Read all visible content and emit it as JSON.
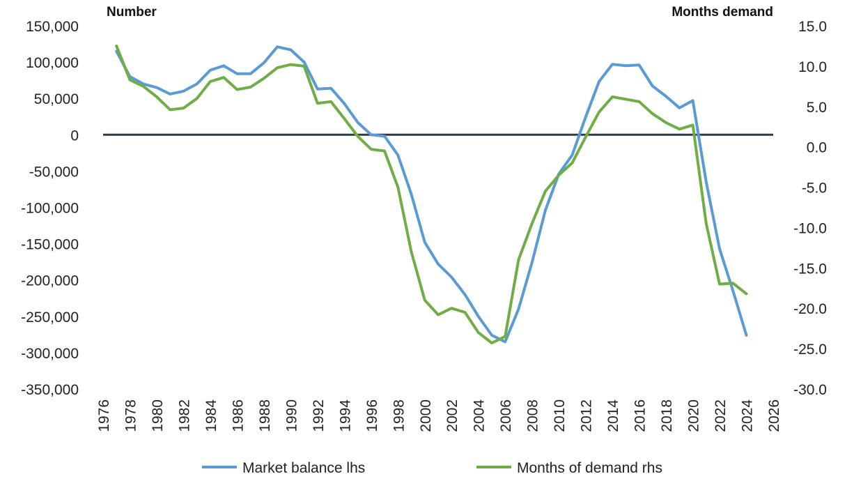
{
  "chart_data": {
    "type": "line",
    "title": "",
    "left_axis_title": "Number",
    "right_axis_title": "Months demand",
    "y_left_range": [
      -350000,
      150000
    ],
    "y_left_ticks": [
      150000,
      100000,
      50000,
      0,
      -50000,
      -100000,
      -150000,
      -200000,
      -250000,
      -300000,
      -350000
    ],
    "y_left_tick_labels": [
      "150,000",
      "100,000",
      "50,000",
      "0",
      "-50,000",
      "-100,000",
      "-150,000",
      "-200,000",
      "-250,000",
      "-300,000",
      "-350,000"
    ],
    "y_right_range": [
      -30,
      15
    ],
    "y_right_ticks": [
      15,
      10,
      5,
      0,
      -5,
      -10,
      -15,
      -20,
      -25,
      -30
    ],
    "y_right_tick_labels": [
      "15.0",
      "10.0",
      "5.0",
      "0.0",
      "-5.0",
      "-10.0",
      "-15.0",
      "-20.0",
      "-25.0",
      "-30.0"
    ],
    "x_range": [
      1976,
      2026
    ],
    "x_ticks": [
      1976,
      1978,
      1980,
      1982,
      1984,
      1986,
      1988,
      1990,
      1992,
      1994,
      1996,
      1998,
      2000,
      2002,
      2004,
      2006,
      2008,
      2010,
      2012,
      2014,
      2016,
      2018,
      2020,
      2022,
      2024,
      2026
    ],
    "x_tick_labels": [
      "1976",
      "1978",
      "1980",
      "1982",
      "1984",
      "1986",
      "1988",
      "1990",
      "1992",
      "1994",
      "1996",
      "1998",
      "2000",
      "2002",
      "2004",
      "2006",
      "2008",
      "2010",
      "2012",
      "2014",
      "2016",
      "2018",
      "2020",
      "2022",
      "2024",
      "2026"
    ],
    "legend_position": "bottom",
    "series": [
      {
        "name": "Market balance lhs",
        "axis": "left",
        "color": "#5B9BD5",
        "x": [
          1977,
          1978,
          1979,
          1980,
          1981,
          1982,
          1983,
          1984,
          1985,
          1986,
          1987,
          1988,
          1989,
          1990,
          1991,
          1992,
          1993,
          1994,
          1995,
          1996,
          1997,
          1998,
          1999,
          2000,
          2001,
          2002,
          2003,
          2004,
          2005,
          2006,
          2007,
          2008,
          2009,
          2010,
          2011,
          2012,
          2013,
          2014,
          2015,
          2016,
          2017,
          2018,
          2019,
          2020,
          2021,
          2022,
          2023,
          2024
        ],
        "values": [
          115000,
          80000,
          70000,
          65000,
          56000,
          60000,
          70000,
          89000,
          95000,
          84000,
          84000,
          99000,
          121000,
          117000,
          100000,
          63000,
          64000,
          43000,
          17000,
          0,
          -2000,
          -28000,
          -82000,
          -148000,
          -178000,
          -196000,
          -220000,
          -250000,
          -276000,
          -285000,
          -240000,
          -176000,
          -104000,
          -54000,
          -28000,
          24000,
          73000,
          97000,
          95000,
          96000,
          67000,
          53000,
          37000,
          47000,
          -65000,
          -157000,
          -215000,
          -276000
        ]
      },
      {
        "name": "Months of demand rhs",
        "axis": "right",
        "color": "#70AD47",
        "x": [
          1977,
          1978,
          1979,
          1980,
          1981,
          1982,
          1983,
          1984,
          1985,
          1986,
          1987,
          1988,
          1989,
          1990,
          1991,
          1992,
          1993,
          1994,
          1995,
          1996,
          1997,
          1998,
          1999,
          2000,
          2001,
          2002,
          2003,
          2004,
          2005,
          2006,
          2007,
          2008,
          2009,
          2010,
          2011,
          2012,
          2013,
          2014,
          2015,
          2016,
          2017,
          2018,
          2019,
          2020,
          2021,
          2022,
          2023,
          2024
        ],
        "values": [
          12.5,
          8.3,
          7.5,
          6.2,
          4.6,
          4.8,
          6.0,
          8.1,
          8.6,
          7.1,
          7.4,
          8.5,
          9.8,
          10.2,
          10.0,
          5.4,
          5.6,
          3.5,
          1.3,
          -0.3,
          -0.5,
          -5.0,
          -13.0,
          -19.0,
          -20.8,
          -20.0,
          -20.5,
          -23.0,
          -24.3,
          -23.5,
          -14.0,
          -9.5,
          -5.5,
          -3.5,
          -2.0,
          1.2,
          4.3,
          6.2,
          5.9,
          5.6,
          4.1,
          3.0,
          2.2,
          2.7,
          -9.5,
          -17.0,
          -16.9,
          -18.2
        ]
      }
    ]
  }
}
